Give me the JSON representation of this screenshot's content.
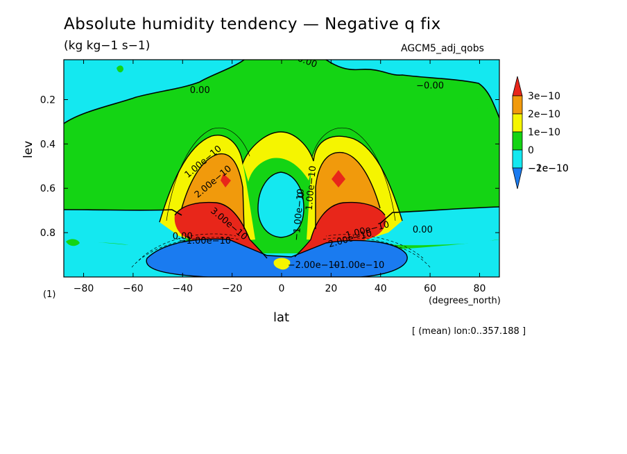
{
  "chart_data": {
    "type": "contour",
    "title": "Absolute humidity tendency — Negative q fix",
    "units": "(kg kg−1 s−1)",
    "dataset": "AGCM5_adj_qobs",
    "xlabel": "lat",
    "ylabel": "lev",
    "x_units": "(degrees_north)",
    "footnote": "(1)",
    "mean_info": "[ (mean) lon:0..357.188 ]",
    "xlim": [
      -88,
      88
    ],
    "ylim": [
      1.0,
      0.02
    ],
    "y_inverted": true,
    "xticks": [
      {
        "v": -80,
        "label": "−80"
      },
      {
        "v": -60,
        "label": "−60"
      },
      {
        "v": -40,
        "label": "−40"
      },
      {
        "v": -20,
        "label": "−20"
      },
      {
        "v": 0,
        "label": "0"
      },
      {
        "v": 20,
        "label": "20"
      },
      {
        "v": 40,
        "label": "40"
      },
      {
        "v": 60,
        "label": "60"
      },
      {
        "v": 80,
        "label": "80"
      }
    ],
    "yticks": [
      {
        "v": 0.2,
        "label": "0.2"
      },
      {
        "v": 0.4,
        "label": "0.4"
      },
      {
        "v": 0.6,
        "label": "0.6"
      },
      {
        "v": 0.8,
        "label": "0.8"
      }
    ],
    "legend": [
      {
        "label": "3e−10",
        "color": "#e8261a"
      },
      {
        "label": "2e−10",
        "color": "#f19a0c"
      },
      {
        "label": "1e−10",
        "color": "#f5f500"
      },
      {
        "label": "0",
        "color": "#14d414"
      },
      {
        "label": "−1e−10",
        "color": "#14e8f0"
      },
      {
        "label": "−2e−10",
        "color": "#1a7bf0"
      }
    ],
    "contour_labels": [
      {
        "text": "0.00",
        "x": -33,
        "y": 0.17
      },
      {
        "text": "0.00",
        "x": 10,
        "y": 0.04,
        "angle": 20
      },
      {
        "text": "−0.00",
        "x": 60,
        "y": 0.15
      },
      {
        "text": "1.00e−10",
        "x": -31,
        "y": 0.49,
        "angle": -40
      },
      {
        "text": "2.00e−10",
        "x": -27,
        "y": 0.58,
        "angle": -40
      },
      {
        "text": "3.00e−10",
        "x": -22,
        "y": 0.77,
        "angle": 40
      },
      {
        "text": "−1.00e−10",
        "x": 8,
        "y": 0.72,
        "angle": -85
      },
      {
        "text": "0",
        "x": 9,
        "y": 0.63,
        "angle": -85
      },
      {
        "text": "1.00e−10",
        "x": 13,
        "y": 0.6,
        "angle": -85
      },
      {
        "text": "1.00e−10",
        "x": 35,
        "y": 0.8,
        "angle": -15
      },
      {
        "text": "2.00e−10",
        "x": 28,
        "y": 0.84,
        "angle": -15
      },
      {
        "text": "0.00",
        "x": 57,
        "y": 0.8
      },
      {
        "text": "0.00",
        "x": -40,
        "y": 0.83
      },
      {
        "text": "−1.00e−10",
        "x": -31,
        "y": 0.85
      },
      {
        "text": "−2.00e−10",
        "x": 13,
        "y": 0.96
      },
      {
        "text": "−1.00e−10",
        "x": 31,
        "y": 0.96
      }
    ],
    "regions": [
      {
        "level": "0",
        "desc": "upper troposphere and stratosphere, most of domain"
      },
      {
        "level": "−1e−10",
        "desc": "top corners, high latitudes near surface, equatorial column 0.5–0.8"
      },
      {
        "level": "1e−10",
        "desc": "two lobes between 0.35–0.85 centered near ±25"
      },
      {
        "level": "2e−10",
        "desc": "inner lobes centered near ±23, 0.45–0.75"
      },
      {
        "level": "3e−10",
        "desc": "maxima near ±20–30 around 0.75–0.9 and small spots near ±23 at 0.55"
      },
      {
        "level": "−2e−10",
        "desc": "near-surface band from −50 to 55, 0.85–1.0"
      }
    ]
  }
}
